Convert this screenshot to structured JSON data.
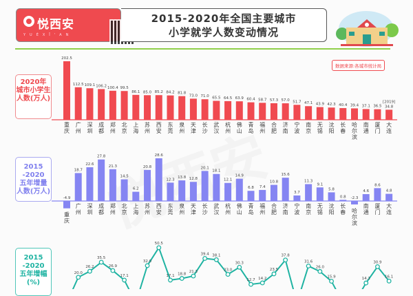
{
  "header": {
    "logo_text": "悦西安",
    "logo_sub": "YUÈXĪ'AN",
    "title_line1": "2015-2020年全国主要城市",
    "title_line2": "小学就学人数变动情况",
    "source": "数据来源:各城市统计局"
  },
  "colors": {
    "bar2020": "#f04a50",
    "barIncrease": "#8585f2",
    "lineGrowth": "#1fb3a2",
    "accentGreen": "#8fcf4a"
  },
  "chart_data": [
    {
      "type": "bar",
      "title": "2020年城市小学生人数(万人)",
      "categories": [
        "重庆",
        "广州",
        "深圳",
        "成都",
        "郑州",
        "北京",
        "上海",
        "苏州",
        "西安",
        "东莞",
        "泉州",
        "天津",
        "长沙",
        "武汉",
        "杭州",
        "佛山",
        "青岛",
        "福州",
        "合肥",
        "济南",
        "宁波",
        "南京",
        "无锡",
        "沈阳",
        "长春",
        "哈尔滨",
        "南通",
        "厦门",
        "大连"
      ],
      "values": [
        202.5,
        112.5,
        109.1,
        106.2,
        100.4,
        99.5,
        86.1,
        85.0,
        85.2,
        84.2,
        81.8,
        73.0,
        71.0,
        65.5,
        64.5,
        63.9,
        60.4,
        58.7,
        57.3,
        57.0,
        51.7,
        47.1,
        43.9,
        42.3,
        40.4,
        39.4,
        37.1,
        36.5,
        34.8
      ],
      "annotation": "[2019]",
      "annotation_category": "大连"
    },
    {
      "type": "bar",
      "title": "2015-2020五年增量人数(万人)",
      "categories": [
        "重庆",
        "广州",
        "深圳",
        "成都",
        "郑州",
        "北京",
        "上海",
        "苏州",
        "西安",
        "东莞",
        "泉州",
        "天津",
        "长沙",
        "武汉",
        "杭州",
        "佛山",
        "青岛",
        "福州",
        "合肥",
        "济南",
        "宁波",
        "南京",
        "无锡",
        "沈阳",
        "长春",
        "哈尔滨",
        "南通",
        "厦门",
        "大连"
      ],
      "values": [
        -4.9,
        18.7,
        22.6,
        27.8,
        21.3,
        14.5,
        6.2,
        20.8,
        28.6,
        12.3,
        13.8,
        12.8,
        20.1,
        18.1,
        12.1,
        14.9,
        6.8,
        7.4,
        10.8,
        15.6,
        3.7,
        11.3,
        9.1,
        5.8,
        0.8,
        -2.3,
        4.6,
        8.6,
        4.8
      ]
    },
    {
      "type": "line",
      "title": "2015-2020五年增幅(%)",
      "categories": [
        "重庆",
        "广州",
        "深圳",
        "成都",
        "郑州",
        "北京",
        "上海",
        "苏州",
        "西安",
        "东莞",
        "泉州",
        "天津",
        "长沙",
        "武汉",
        "杭州",
        "佛山",
        "青岛",
        "福州",
        "合肥",
        "济南",
        "宁波",
        "南京",
        "无锡",
        "沈阳",
        "长春",
        "哈尔滨",
        "南通",
        "厦门",
        "大连"
      ],
      "values": [
        null,
        20.0,
        26.2,
        35.5,
        26.9,
        17.1,
        null,
        32.0,
        50.5,
        17.1,
        18.8,
        21.3,
        39.4,
        38.1,
        23.0,
        30.3,
        12.7,
        14.2,
        23.5,
        37.8,
        null,
        31.6,
        26.0,
        15.9,
        null,
        null,
        14.1,
        30.9,
        16.1
      ]
    }
  ],
  "labels": {
    "chart1": [
      "2020年",
      "城市小学生",
      "人数(万人)"
    ],
    "chart2": [
      "2015",
      "-2020",
      "五年增量",
      "人数(万人)"
    ],
    "chart3": [
      "2015",
      "-2020",
      "五年增幅",
      "(%)"
    ]
  }
}
